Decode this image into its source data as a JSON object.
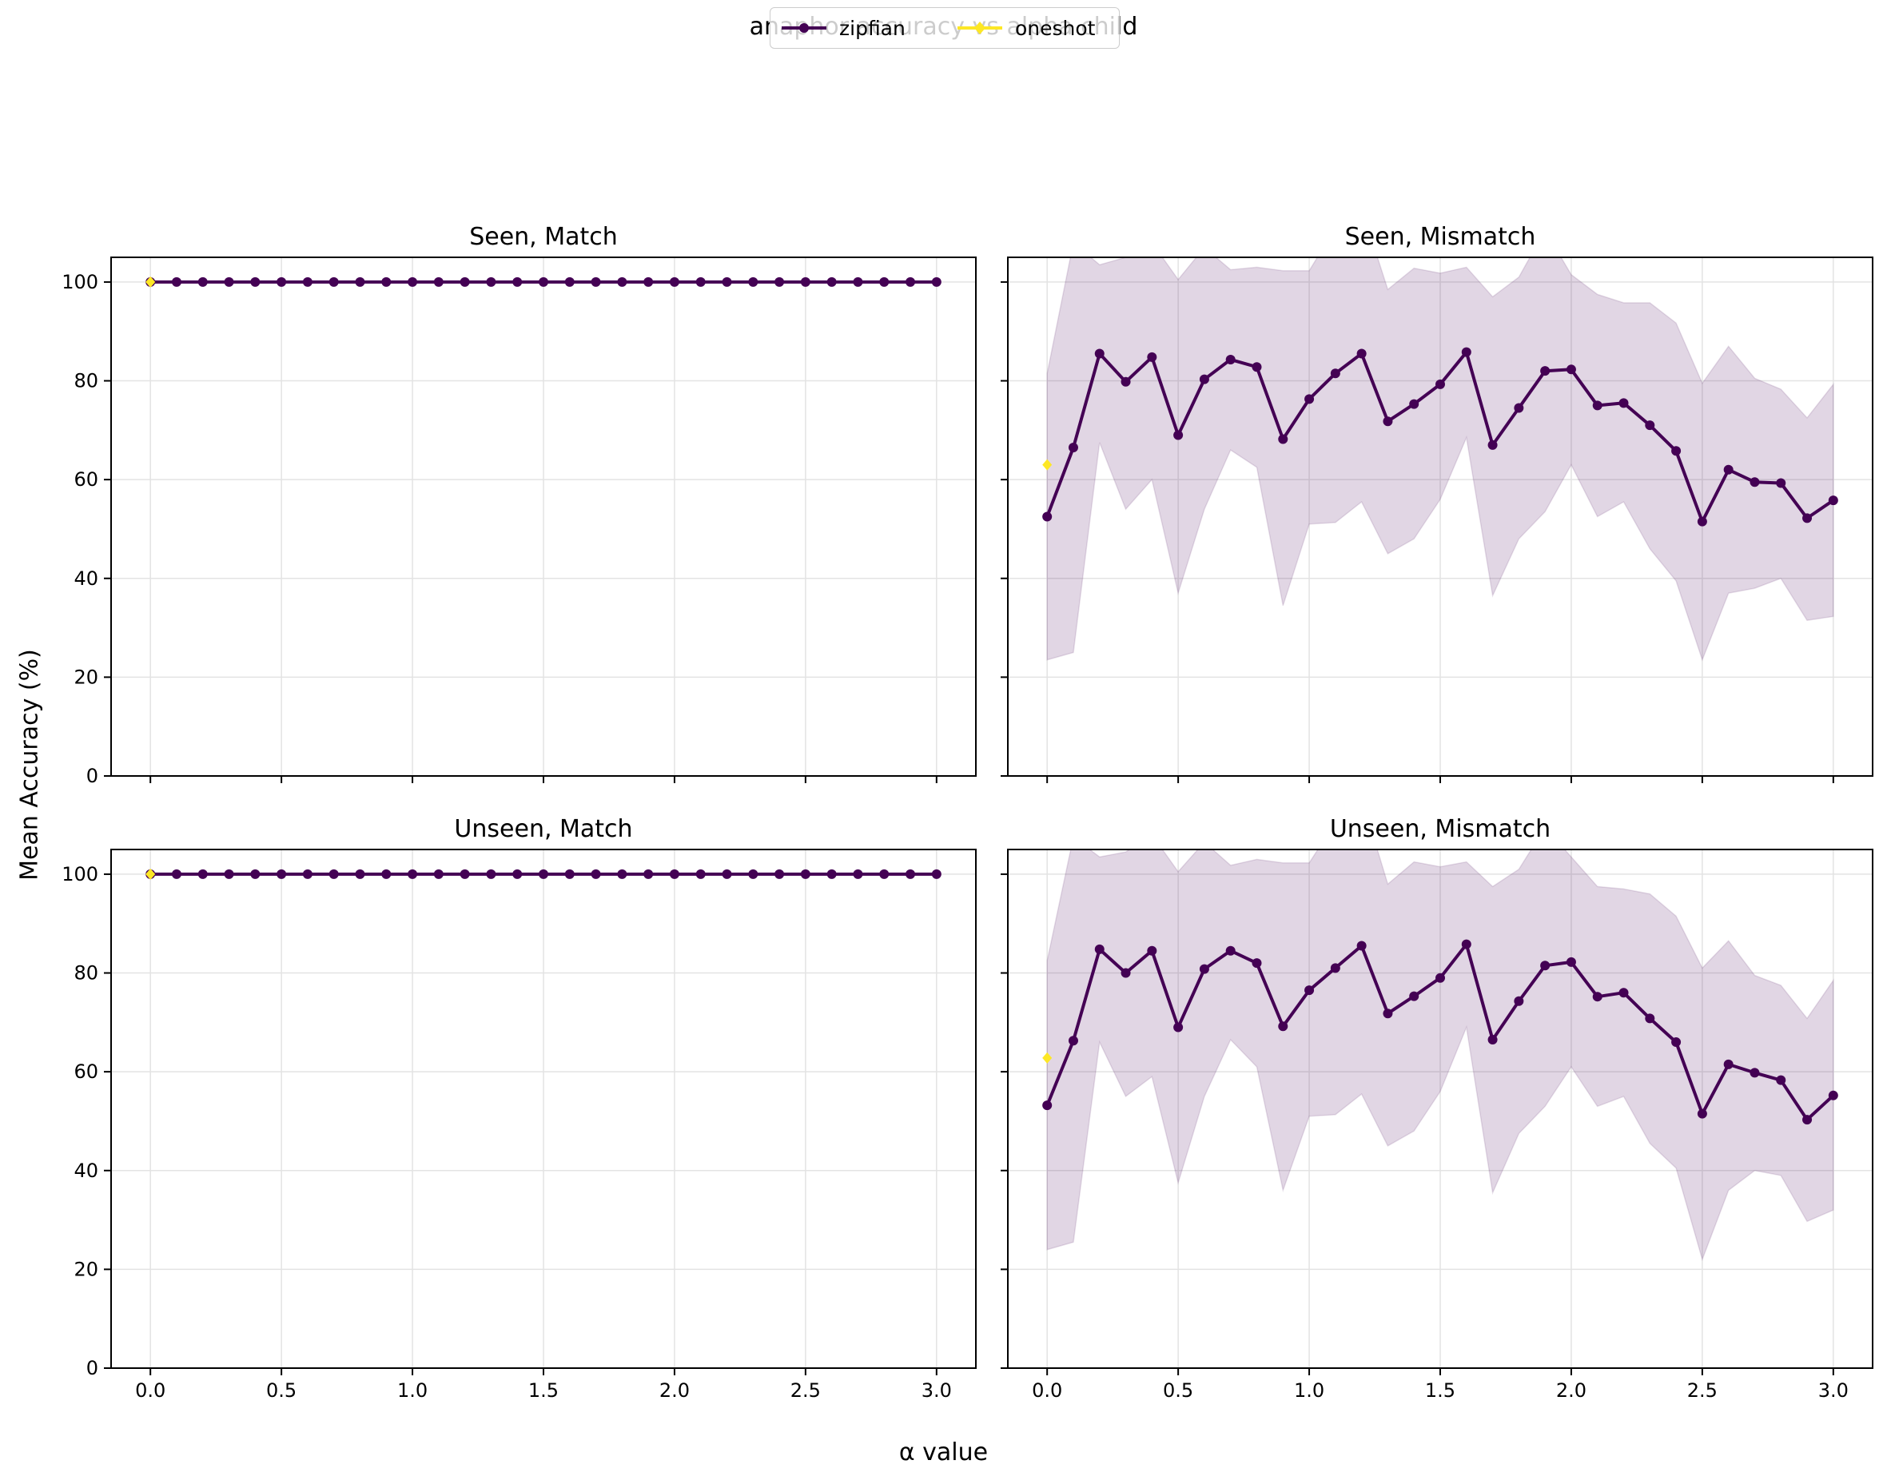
{
  "figure": {
    "title": "anaphor accuracy vs alpha child",
    "xlabel": "α value",
    "ylabel": "Mean Accuracy (%)"
  },
  "legend": {
    "placement": "top-center",
    "entries": [
      {
        "name": "zipfian",
        "color": "#440154",
        "marker": "circle"
      },
      {
        "name": "oneshot",
        "color": "#fde725",
        "marker": "diamond"
      }
    ]
  },
  "style": {
    "zipfian_color": "#440154",
    "oneshot_color": "#fde725",
    "band_color": "#440154",
    "band_opacity": 0.16,
    "grid_color": "#e3e3e3"
  },
  "chart_data": [
    {
      "type": "line",
      "title": "Seen, Match",
      "xlim": [
        -0.15,
        3.15
      ],
      "ylim": [
        0,
        105
      ],
      "xticks": [
        "0.0",
        "0.5",
        "1.0",
        "1.5",
        "2.0",
        "2.5",
        "3.0"
      ],
      "yticks": [
        "0",
        "20",
        "40",
        "60",
        "80",
        "100"
      ],
      "grid": true,
      "series": [
        {
          "name": "zipfian",
          "x": [
            0.0,
            0.1,
            0.2,
            0.3,
            0.4,
            0.5,
            0.6,
            0.7,
            0.8,
            0.9,
            1.0,
            1.1,
            1.2,
            1.3,
            1.4,
            1.5,
            1.6,
            1.7,
            1.8,
            1.9,
            2.0,
            2.1,
            2.2,
            2.3,
            2.4,
            2.5,
            2.6,
            2.7,
            2.8,
            2.9,
            3.0
          ],
          "y": [
            100,
            100,
            100,
            100,
            100,
            100,
            100,
            100,
            100,
            100,
            100,
            100,
            100,
            100,
            100,
            100,
            100,
            100,
            100,
            100,
            100,
            100,
            100,
            100,
            100,
            100,
            100,
            100,
            100,
            100,
            100
          ]
        },
        {
          "name": "oneshot",
          "x": [
            0.0
          ],
          "y": [
            100
          ]
        }
      ]
    },
    {
      "type": "line",
      "title": "Seen, Mismatch",
      "xlim": [
        -0.15,
        3.15
      ],
      "ylim": [
        0,
        105
      ],
      "xticks": [
        "0.0",
        "0.5",
        "1.0",
        "1.5",
        "2.0",
        "2.5",
        "3.0"
      ],
      "yticks": [
        "0",
        "20",
        "40",
        "60",
        "80",
        "100"
      ],
      "grid": true,
      "series": [
        {
          "name": "zipfian",
          "x": [
            0.0,
            0.1,
            0.2,
            0.3,
            0.4,
            0.5,
            0.6,
            0.7,
            0.8,
            0.9,
            1.0,
            1.1,
            1.2,
            1.3,
            1.4,
            1.5,
            1.6,
            1.7,
            1.8,
            1.9,
            2.0,
            2.1,
            2.2,
            2.3,
            2.4,
            2.5,
            2.6,
            2.7,
            2.8,
            2.9,
            3.0
          ],
          "y": [
            52.5,
            66.5,
            85.5,
            79.8,
            84.8,
            69.0,
            80.3,
            84.3,
            82.8,
            68.2,
            76.3,
            81.5,
            85.5,
            71.8,
            75.3,
            79.3,
            85.8,
            67.0,
            74.5,
            82.0,
            82.3,
            75.0,
            75.5,
            71.0,
            65.8,
            51.5,
            62.0,
            59.5,
            59.3,
            52.2,
            55.8
          ],
          "lower": [
            23.5,
            25.0,
            67.5,
            54.0,
            60.0,
            37.0,
            54.0,
            66.0,
            62.5,
            34.5,
            51.0,
            51.3,
            55.5,
            45.0,
            48.0,
            56.0,
            68.5,
            36.5,
            48.0,
            53.5,
            63.0,
            52.5,
            55.5,
            46.0,
            39.5,
            23.5,
            37.0,
            38.0,
            40.0,
            31.5,
            32.3
          ],
          "upper": [
            81.5,
            108.0,
            103.5,
            105.0,
            108.0,
            100.5,
            107.0,
            102.5,
            103.0,
            102.3,
            102.3,
            111.0,
            115.0,
            98.5,
            102.8,
            101.8,
            103.0,
            97.0,
            101.0,
            110.5,
            101.5,
            97.5,
            95.8,
            95.8,
            91.7,
            79.5,
            87.0,
            80.5,
            78.3,
            72.5,
            79.3
          ]
        },
        {
          "name": "oneshot",
          "x": [
            0.0
          ],
          "y": [
            63.0
          ]
        }
      ]
    },
    {
      "type": "line",
      "title": "Unseen, Match",
      "xlim": [
        -0.15,
        3.15
      ],
      "ylim": [
        0,
        105
      ],
      "xticks": [
        "0.0",
        "0.5",
        "1.0",
        "1.5",
        "2.0",
        "2.5",
        "3.0"
      ],
      "yticks": [
        "0",
        "20",
        "40",
        "60",
        "80",
        "100"
      ],
      "grid": true,
      "series": [
        {
          "name": "zipfian",
          "x": [
            0.0,
            0.1,
            0.2,
            0.3,
            0.4,
            0.5,
            0.6,
            0.7,
            0.8,
            0.9,
            1.0,
            1.1,
            1.2,
            1.3,
            1.4,
            1.5,
            1.6,
            1.7,
            1.8,
            1.9,
            2.0,
            2.1,
            2.2,
            2.3,
            2.4,
            2.5,
            2.6,
            2.7,
            2.8,
            2.9,
            3.0
          ],
          "y": [
            100,
            100,
            100,
            100,
            100,
            100,
            100,
            100,
            100,
            100,
            100,
            100,
            100,
            100,
            100,
            100,
            100,
            100,
            100,
            100,
            100,
            100,
            100,
            100,
            100,
            100,
            100,
            100,
            100,
            100,
            100
          ]
        },
        {
          "name": "oneshot",
          "x": [
            0.0
          ],
          "y": [
            100
          ]
        }
      ]
    },
    {
      "type": "line",
      "title": "Unseen, Mismatch",
      "xlim": [
        -0.15,
        3.15
      ],
      "ylim": [
        0,
        105
      ],
      "xticks": [
        "0.0",
        "0.5",
        "1.0",
        "1.5",
        "2.0",
        "2.5",
        "3.0"
      ],
      "yticks": [
        "0",
        "20",
        "40",
        "60",
        "80",
        "100"
      ],
      "grid": true,
      "series": [
        {
          "name": "zipfian",
          "x": [
            0.0,
            0.1,
            0.2,
            0.3,
            0.4,
            0.5,
            0.6,
            0.7,
            0.8,
            0.9,
            1.0,
            1.1,
            1.2,
            1.3,
            1.4,
            1.5,
            1.6,
            1.7,
            1.8,
            1.9,
            2.0,
            2.1,
            2.2,
            2.3,
            2.4,
            2.5,
            2.6,
            2.7,
            2.8,
            2.9,
            3.0
          ],
          "y": [
            53.2,
            66.3,
            84.8,
            80.0,
            84.5,
            69.0,
            80.8,
            84.5,
            82.0,
            69.2,
            76.5,
            81.0,
            85.5,
            71.8,
            75.3,
            79.0,
            85.8,
            66.5,
            74.3,
            81.5,
            82.2,
            75.2,
            76.0,
            70.8,
            66.0,
            51.5,
            61.5,
            59.8,
            58.3,
            50.3,
            55.2
          ],
          "lower": [
            24.0,
            25.5,
            66.0,
            55.0,
            59.0,
            37.5,
            55.0,
            66.5,
            61.0,
            36.0,
            51.0,
            51.3,
            55.5,
            45.0,
            48.0,
            56.0,
            69.0,
            35.5,
            47.5,
            53.0,
            61.0,
            53.0,
            55.0,
            45.5,
            40.5,
            22.0,
            36.0,
            40.0,
            39.0,
            29.7,
            32.0
          ],
          "upper": [
            82.5,
            107.5,
            103.5,
            104.5,
            108.0,
            100.5,
            106.5,
            101.8,
            103.0,
            102.3,
            102.3,
            110.5,
            115.5,
            98.0,
            102.5,
            101.5,
            102.5,
            97.5,
            101.0,
            109.5,
            103.5,
            97.5,
            97.0,
            96.0,
            91.5,
            81.0,
            86.5,
            79.5,
            77.5,
            70.8,
            78.5
          ]
        },
        {
          "name": "oneshot",
          "x": [
            0.0
          ],
          "y": [
            62.8
          ]
        }
      ]
    }
  ]
}
